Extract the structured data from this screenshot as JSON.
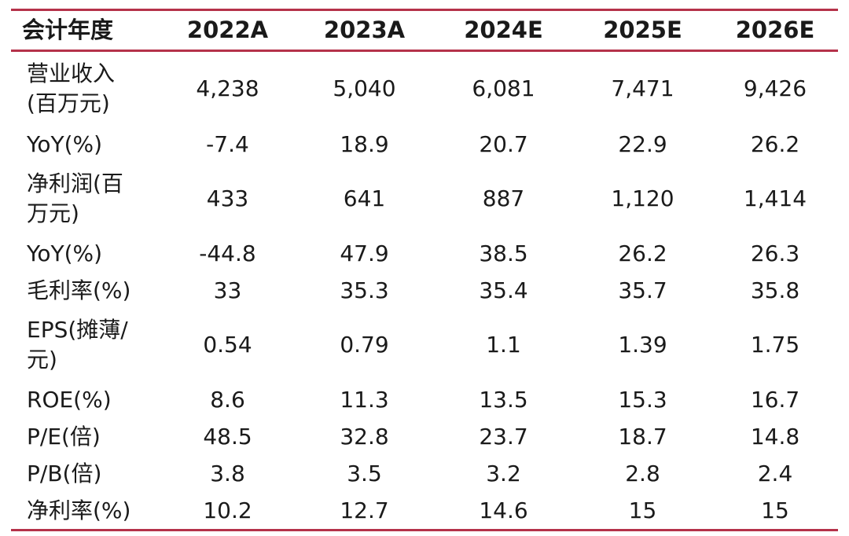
{
  "header": {
    "label": "会计年度",
    "years": [
      "2022A",
      "2023A",
      "2024E",
      "2025E",
      "2026E"
    ]
  },
  "rows": [
    {
      "label_lines": [
        "营业收入",
        "(百万元)"
      ],
      "values": [
        "4,238",
        "5,040",
        "6,081",
        "7,471",
        "9,426"
      ]
    },
    {
      "label_lines": [
        "YoY(%)"
      ],
      "values": [
        "-7.4",
        "18.9",
        "20.7",
        "22.9",
        "26.2"
      ]
    },
    {
      "label_lines": [
        "净利润(百",
        "万元)"
      ],
      "values": [
        "433",
        "641",
        "887",
        "1,120",
        "1,414"
      ]
    },
    {
      "label_lines": [
        "YoY(%)"
      ],
      "values": [
        "-44.8",
        "47.9",
        "38.5",
        "26.2",
        "26.3"
      ]
    },
    {
      "label_lines": [
        "毛利率(%)"
      ],
      "values": [
        "33",
        "35.3",
        "35.4",
        "35.7",
        "35.8"
      ]
    },
    {
      "label_lines": [
        "EPS(摊薄/",
        "元)"
      ],
      "values": [
        "0.54",
        "0.79",
        "1.1",
        "1.39",
        "1.75"
      ]
    },
    {
      "label_lines": [
        "ROE(%)"
      ],
      "values": [
        "8.6",
        "11.3",
        "13.5",
        "15.3",
        "16.7"
      ]
    },
    {
      "label_lines": [
        "P/E(倍)"
      ],
      "values": [
        "48.5",
        "32.8",
        "23.7",
        "18.7",
        "14.8"
      ]
    },
    {
      "label_lines": [
        "P/B(倍)"
      ],
      "values": [
        "3.8",
        "3.5",
        "3.2",
        "2.8",
        "2.4"
      ]
    },
    {
      "label_lines": [
        "净利率(%)"
      ],
      "values": [
        "10.2",
        "12.7",
        "14.6",
        "15",
        "15"
      ]
    }
  ],
  "colors": {
    "rule": "#b5324a",
    "text": "#1a1a1a"
  }
}
